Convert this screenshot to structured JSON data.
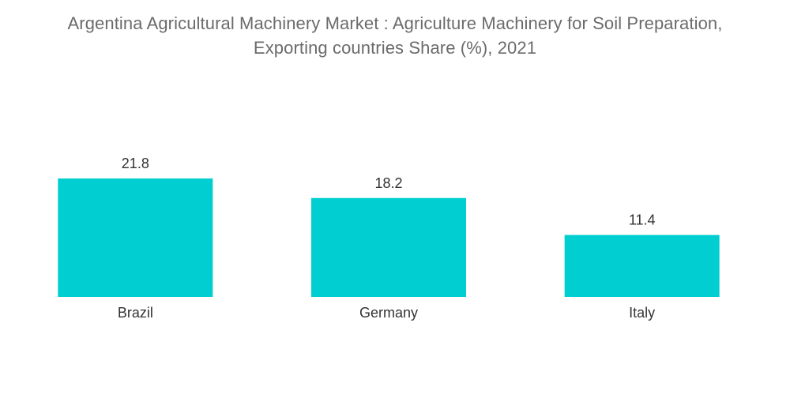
{
  "title_lines": [
    "Argentina Agricultural Machinery Market : Agriculture Machinery for Soil Preparation,",
    "Exporting countries Share (%), 2021"
  ],
  "colors": {
    "bar": "#00CED1",
    "title": "#6b6b6b",
    "label": "#333333"
  },
  "chart_data": {
    "type": "bar",
    "title": "Argentina Agricultural Machinery Market : Agriculture Machinery for Soil Preparation, Exporting countries Share (%), 2021",
    "categories": [
      "Brazil",
      "Germany",
      "Italy"
    ],
    "values": [
      21.8,
      18.2,
      11.4
    ],
    "data_labels": [
      "21.8",
      "18.2",
      "11.4"
    ],
    "xlabel": "",
    "ylabel": "",
    "ylim": [
      0,
      21.8
    ],
    "grid": false,
    "legend": "none"
  }
}
